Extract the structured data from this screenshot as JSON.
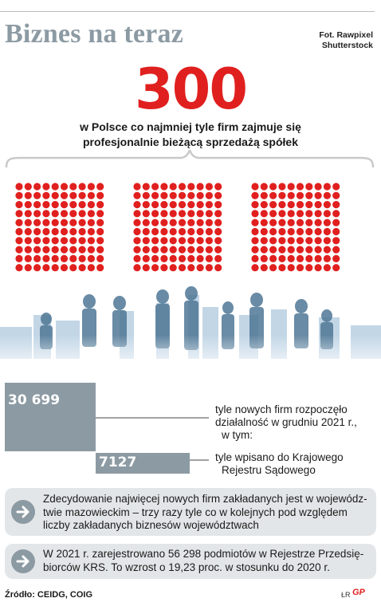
{
  "header": {
    "title": "Biznes na teraz",
    "photo_credit_line1": "Fot. Rawpixel",
    "photo_credit_line2": "Shutterstock"
  },
  "headline": {
    "number": "300",
    "subtitle_line1": "w Polsce co najmniej tyle firm zajmuje się",
    "subtitle_line2": "profesjonalnie bieżącą sprzedażą spółek"
  },
  "dot_grid": {
    "count": 300,
    "groups": 3,
    "color": "#e0201f"
  },
  "chart_data": {
    "type": "bar",
    "orientation": "horizontal",
    "categories": [
      "tyle nowych firm rozpoczęło działalność w grudniu 2021 r., w tym:",
      "tyle wpisano do Krajowego Rejestru Sądowego"
    ],
    "values": [
      30699,
      7127
    ],
    "value_labels": [
      "30 699",
      "7127"
    ],
    "bar_color": "#8c9aa3"
  },
  "bar_texts": {
    "first_line1": "tyle nowych firm rozpoczęło",
    "first_line2": "działalność w grudniu 2021 r.,",
    "first_line3": "w tym:",
    "second_line1": "tyle wpisano do Krajowego",
    "second_line2": "Rejestru Sądowego"
  },
  "info_boxes": [
    {
      "icon": "arrow-right-icon",
      "line1": "Zdecydowanie najwięcej nowych firm zakładanych jest w wojewódz-",
      "line2": "twie mazowieckim – trzy razy tyle co w kolejnych pod względem",
      "line3": "liczby zakładanych biznesów województwach"
    },
    {
      "icon": "arrow-right-icon",
      "line1": "W 2021 r. zarejestrowano 56 298 podmiotów w Rejestrze Przedsię-",
      "line2": "biorców KRS. To wzrost o 19,23 proc. w stosunku do 2020 r."
    }
  ],
  "footer": {
    "source": "Źródło: CEIDG, COIG",
    "initials": "ŁR",
    "logo": "GP"
  },
  "colors": {
    "accent_red": "#e0201f",
    "gray": "#8c9aa3",
    "box_bg": "#e3e6e8"
  }
}
